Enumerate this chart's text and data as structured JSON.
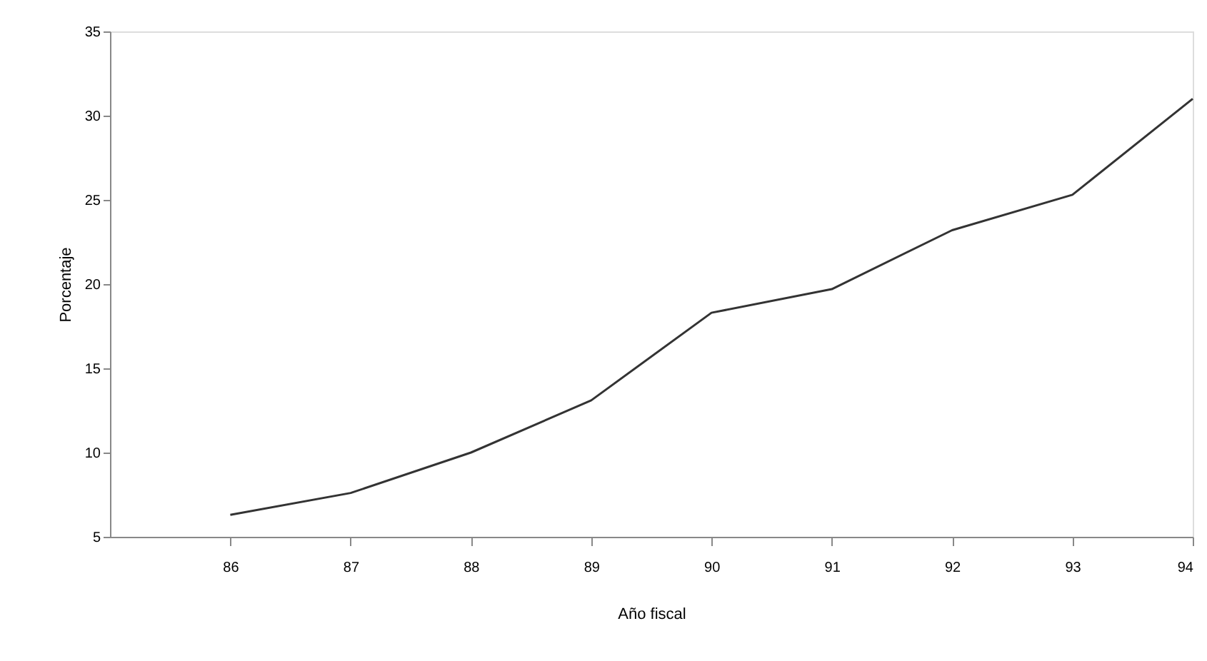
{
  "chart_data": {
    "type": "line",
    "xlabel": "Año fiscal",
    "ylabel": "Porcentaje",
    "x": [
      86,
      87,
      88,
      89,
      90,
      91,
      92,
      93,
      94
    ],
    "series": [
      {
        "color": "#333333",
        "values": [
          6.3,
          7.6,
          10.0,
          13.1,
          18.3,
          19.7,
          23.2,
          25.3,
          31.0
        ]
      }
    ],
    "xlim": [
      85,
      94
    ],
    "xticks": [
      86,
      87,
      88,
      89,
      90,
      91,
      92,
      93,
      94
    ],
    "ylim": [
      5,
      35
    ],
    "yticks": [
      5,
      10,
      15,
      20,
      25,
      30,
      35
    ],
    "grid": false,
    "marker": "none",
    "line_style": "solid"
  }
}
